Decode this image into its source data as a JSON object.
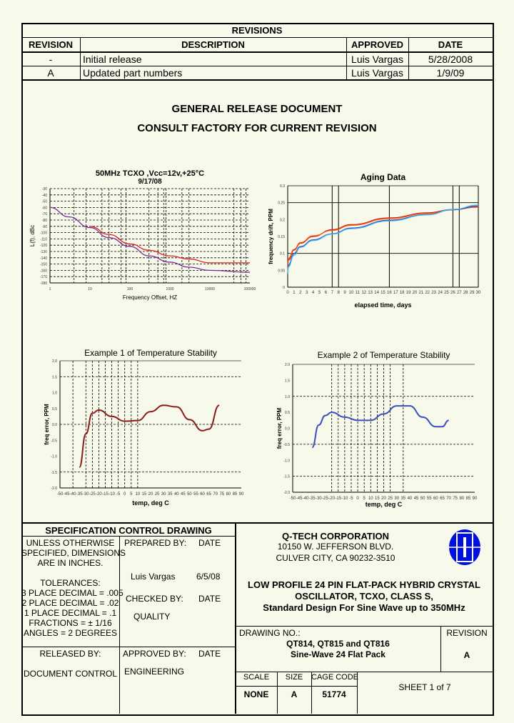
{
  "revisions": {
    "title": "REVISIONS",
    "headers": [
      "REVISION",
      "DESCRIPTION",
      "APPROVED",
      "DATE"
    ],
    "rows": [
      [
        "-",
        "Initial release",
        "Luis Vargas",
        "5/28/2008"
      ],
      [
        "A",
        "Updated part numbers",
        "Luis Vargas",
        "1/9/09"
      ]
    ]
  },
  "notice": {
    "line1": "GENERAL RELEASE DOCUMENT",
    "line2": "CONSULT FACTORY FOR CURRENT REVISION"
  },
  "chart_data": [
    {
      "type": "line",
      "title": "50MHz TCXO ,Vcc=12v,+25°C",
      "subtitle": "9/17/08",
      "xlabel": "Frequency Offset, HZ",
      "ylabel": "L(f), dBc",
      "xscale": "log",
      "xlim": [
        1,
        100000
      ],
      "ylim": [
        -180,
        -30
      ],
      "xticks": [
        "1",
        "10",
        "100",
        "1000",
        "10000",
        "100000"
      ],
      "yticks": [
        "-30",
        "-40",
        "-50",
        "-60",
        "-70",
        "-80",
        "-90",
        "-100",
        "-110",
        "-120",
        "-130",
        "-140",
        "-150",
        "-160",
        "-170",
        "-180"
      ],
      "grid": true,
      "series": [
        {
          "color": "#7a2a9a",
          "x": [
            1,
            3,
            10,
            30,
            100,
            300,
            1000,
            3000,
            10000,
            100000
          ],
          "y": [
            -60,
            -75,
            -92,
            -108,
            -122,
            -137,
            -147,
            -155,
            -160,
            -163
          ]
        },
        {
          "color": "#e02020",
          "x": [
            10,
            30,
            100,
            300,
            1000,
            3000,
            10000,
            100000
          ],
          "y": [
            -90,
            -103,
            -118,
            -128,
            -137,
            -142,
            -148,
            -148
          ]
        }
      ]
    },
    {
      "type": "line",
      "title": "Aging Data",
      "xlabel": "elapsed time, days",
      "ylabel": "frequency drift, PPM",
      "xlim": [
        0,
        30
      ],
      "ylim": [
        0,
        0.3
      ],
      "xticks": [
        "0",
        "1",
        "2",
        "3",
        "4",
        "5",
        "6",
        "7",
        "8",
        "9",
        "10",
        "11",
        "12",
        "13",
        "14",
        "15",
        "16",
        "17",
        "18",
        "19",
        "20",
        "21",
        "22",
        "23",
        "24",
        "25",
        "26",
        "27",
        "28",
        "29",
        "30"
      ],
      "yticks": [
        "0",
        "0.05",
        "0.1",
        "0.15",
        "0.2",
        "0.25",
        "0.3"
      ],
      "grid": true,
      "series": [
        {
          "color": "#c02010",
          "x": [
            0,
            0.1,
            1,
            2,
            4,
            7,
            10,
            16,
            22,
            26,
            30
          ],
          "y": [
            0.04,
            0.08,
            0.11,
            0.13,
            0.15,
            0.17,
            0.185,
            0.205,
            0.22,
            0.23,
            0.237
          ]
        },
        {
          "color": "#ff5a1a",
          "x": [
            0,
            0.1,
            1,
            2,
            4,
            7,
            10,
            16,
            22,
            26,
            30
          ],
          "y": [
            0.04,
            0.085,
            0.112,
            0.132,
            0.152,
            0.168,
            0.183,
            0.203,
            0.218,
            0.229,
            0.238
          ]
        },
        {
          "color": "#3040b0",
          "x": [
            0,
            0.1,
            1,
            2,
            4,
            7,
            10,
            16,
            22,
            26,
            30
          ],
          "y": [
            0.04,
            0.065,
            0.1,
            0.12,
            0.14,
            0.158,
            0.175,
            0.198,
            0.215,
            0.229,
            0.24
          ]
        },
        {
          "color": "#40b8f0",
          "x": [
            0,
            0.1,
            1,
            2,
            4,
            7,
            10,
            16,
            22,
            26,
            30
          ],
          "y": [
            0.04,
            0.06,
            0.095,
            0.118,
            0.138,
            0.157,
            0.173,
            0.196,
            0.214,
            0.23,
            0.243
          ]
        }
      ]
    },
    {
      "type": "line",
      "title": "Example 1 of Temperature Stability",
      "xlabel": "temp, deg C",
      "ylabel": "freq error, PPM",
      "xlim": [
        -50,
        90
      ],
      "ylim": [
        -2,
        2
      ],
      "xticks": [
        "-50",
        "-45",
        "-40",
        "-35",
        "-30",
        "-25",
        "-20",
        "-15",
        "-10",
        "-5",
        "0",
        "5",
        "10",
        "15",
        "20",
        "25",
        "30",
        "35",
        "40",
        "45",
        "50",
        "55",
        "60",
        "65",
        "70",
        "75",
        "80",
        "85",
        "90"
      ],
      "yticks": [
        "2.0",
        "1.5",
        "1.0",
        "0.5",
        "0.0",
        "-0.5",
        "-1.0",
        "-1.5",
        "-2.0"
      ],
      "grid": true,
      "series": [
        {
          "color": "#8b1a1a",
          "x": [
            -35,
            -30,
            -25,
            -20,
            -10,
            0,
            10,
            20,
            30,
            40,
            50,
            60,
            65,
            73
          ],
          "y": [
            -1.35,
            -0.3,
            0.35,
            0.45,
            0.25,
            0.1,
            0.12,
            0.4,
            0.6,
            0.55,
            0.15,
            -0.2,
            -0.15,
            0.6
          ]
        }
      ]
    },
    {
      "type": "line",
      "title": "Example 2 of Temperature Stability",
      "xlabel": "temp, deg C",
      "ylabel": "freq error, PPM",
      "xlim": [
        -50,
        90
      ],
      "ylim": [
        -2,
        2
      ],
      "xticks": [
        "-50",
        "-45",
        "-40",
        "-35",
        "-30",
        "-25",
        "-20",
        "-15",
        "-10",
        "-5",
        "0",
        "5",
        "10",
        "15",
        "20",
        "25",
        "30",
        "35",
        "40",
        "45",
        "50",
        "55",
        "60",
        "65",
        "70",
        "75",
        "80",
        "85",
        "90"
      ],
      "yticks": [
        "2.0",
        "1.5",
        "1.0",
        "0.5",
        "0.0",
        "-0.5",
        "-1.0",
        "-1.5",
        "-2.0"
      ],
      "grid": true,
      "series": [
        {
          "color": "#3a4fc0",
          "x": [
            -35,
            -30,
            -25,
            -20,
            -10,
            0,
            10,
            20,
            30,
            40,
            50,
            60,
            65,
            70
          ],
          "y": [
            -0.6,
            0.1,
            0.4,
            0.5,
            0.35,
            0.25,
            0.25,
            0.45,
            0.7,
            0.7,
            0.35,
            0.05,
            0.05,
            0.25
          ]
        }
      ]
    }
  ],
  "titleblock": {
    "spec_title": "SPECIFICATION CONTROL DRAWING",
    "unless": [
      "UNLESS OTHERWISE",
      "SPECIFIED, DIMENSIONS",
      "ARE IN INCHES."
    ],
    "tolerances": [
      "TOLERANCES:",
      "3 PLACE DECIMAL = .005",
      "2 PLACE DECIMAL = .02",
      "1 PLACE DECIMAL = .1",
      "FRACTIONS = ± 1/16",
      "ANGLES = 2 DEGREES"
    ],
    "prepared_by": "PREPARED BY:",
    "date_label": "DATE",
    "preparer": "Luis Vargas",
    "prepared_date": "6/5/08",
    "checked_by": "CHECKED BY:",
    "checker": "QUALITY",
    "released_by": "RELEASED BY:",
    "releaser": "DOCUMENT CONTROL",
    "approved_by": "APPROVED BY:",
    "approver": "ENGINEERING",
    "company": "Q-TECH CORPORATION",
    "address1": "10150 W. JEFFERSON BLVD.",
    "address2": "CULVER CITY, CA  90232-3510",
    "logo_color": "#0010e0",
    "description": [
      "LOW PROFILE 24 PIN FLAT-PACK HYBRID CRYSTAL",
      "OSCILLATOR, TCXO, CLASS S,",
      "Standard Design For Sine Wave up to 350MHz"
    ],
    "drawing_no_label": "DRAWING NO.:",
    "drawing_no": "QT814, QT815 and QT816",
    "drawing_sub": "Sine-Wave 24 Flat Pack",
    "revision_label": "REVISION",
    "revision": "A",
    "scale_label": "SCALE",
    "scale": "NONE",
    "size_label": "SIZE",
    "size": "A",
    "cage_label": "CAGE CODE",
    "cage": "51774",
    "sheet": "SHEET 1 of  7"
  }
}
